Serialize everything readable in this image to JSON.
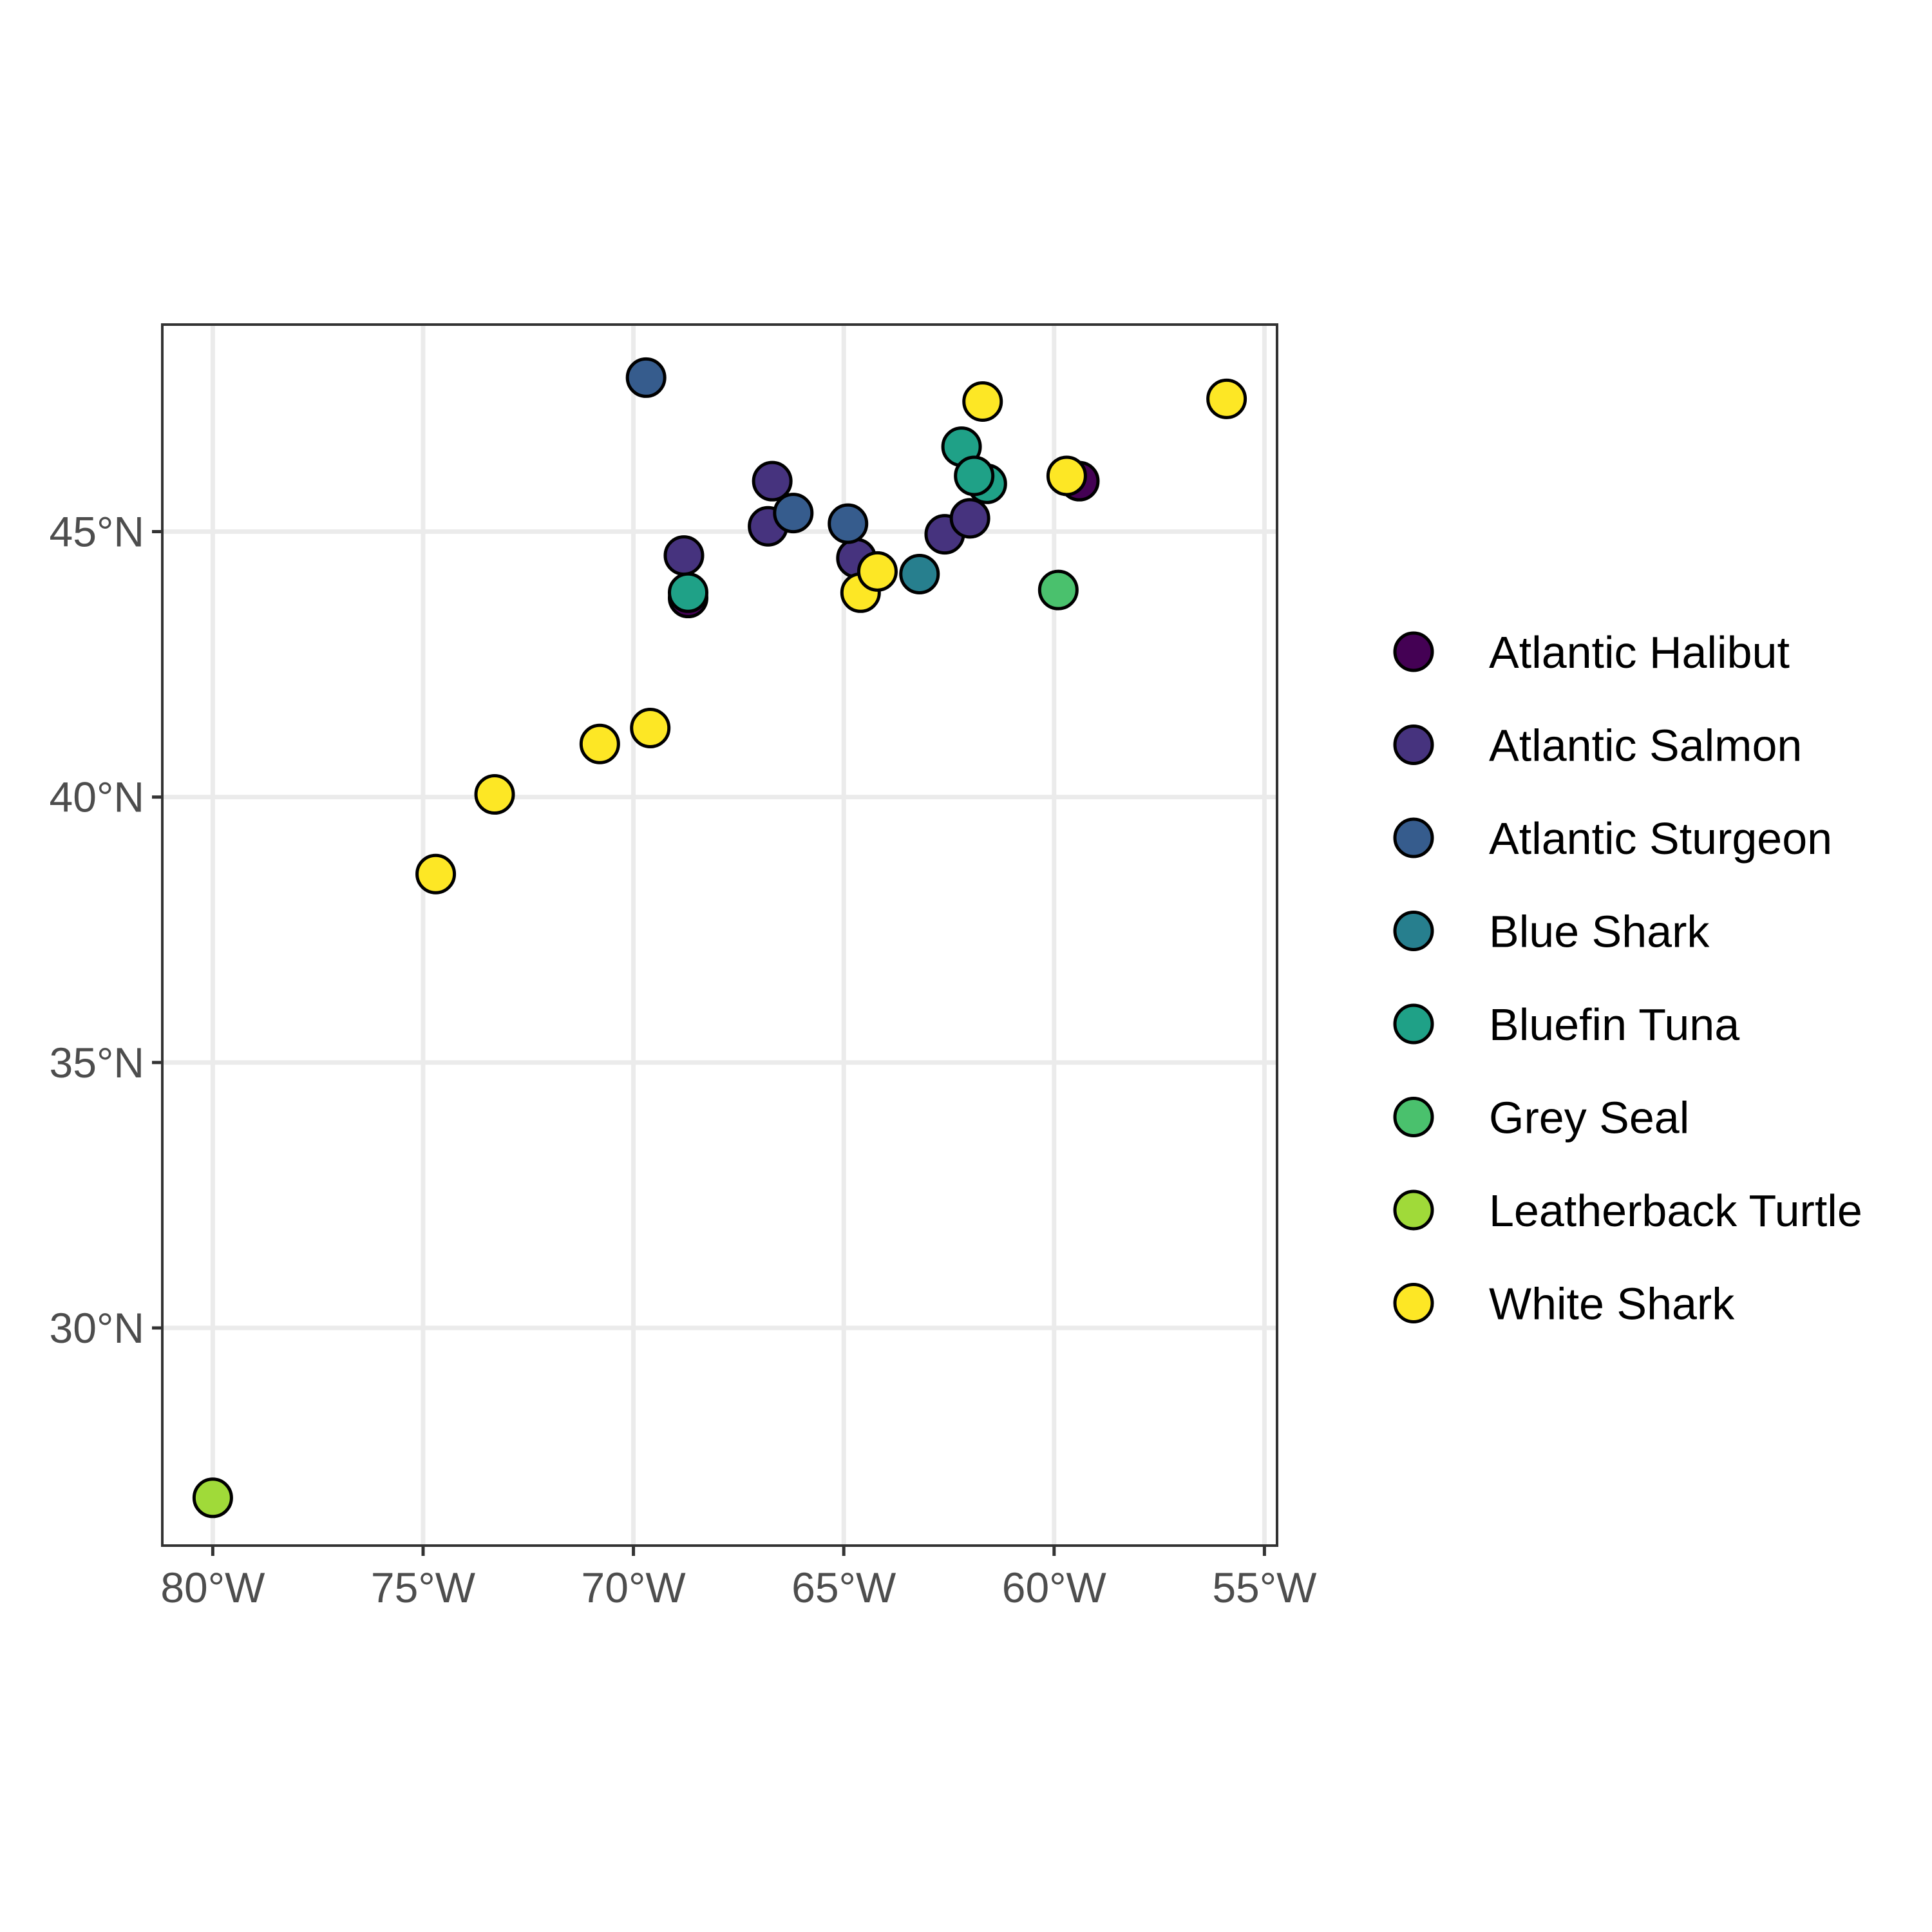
{
  "chart_data": {
    "type": "scatter",
    "title": "",
    "xlabel": "",
    "ylabel": "",
    "xlim": [
      -81.2,
      -54.7
    ],
    "ylim": [
      25.9,
      48.9
    ],
    "x_ticks": [
      {
        "value": -80,
        "label": "80°W"
      },
      {
        "value": -75,
        "label": "75°W"
      },
      {
        "value": -70,
        "label": "70°W"
      },
      {
        "value": -65,
        "label": "65°W"
      },
      {
        "value": -60,
        "label": "60°W"
      },
      {
        "value": -55,
        "label": "55°W"
      }
    ],
    "y_ticks": [
      {
        "value": 30,
        "label": "30°N"
      },
      {
        "value": 35,
        "label": "35°N"
      },
      {
        "value": 40,
        "label": "40°N"
      },
      {
        "value": 45,
        "label": "45°N"
      }
    ],
    "grid": true,
    "legend": {
      "position": "right"
    },
    "series": [
      {
        "name": "Atlantic Halibut",
        "color": "#440154",
        "points": [
          [
            -68.7,
            43.75
          ],
          [
            -59.4,
            45.95
          ]
        ]
      },
      {
        "name": "Atlantic Salmon",
        "color": "#46337E",
        "points": [
          [
            -68.8,
            44.55
          ],
          [
            -66.7,
            45.95
          ],
          [
            -66.8,
            45.1
          ],
          [
            -64.7,
            44.5
          ],
          [
            -62.6,
            44.95
          ],
          [
            -62.0,
            45.25
          ]
        ]
      },
      {
        "name": "Atlantic Sturgeon",
        "color": "#365C8D",
        "points": [
          [
            -69.7,
            47.9
          ],
          [
            -66.2,
            45.35
          ],
          [
            -64.9,
            45.15
          ]
        ]
      },
      {
        "name": "Blue Shark",
        "color": "#277F8E",
        "points": [
          [
            -63.2,
            44.2
          ]
        ]
      },
      {
        "name": "Bluefin Tuna",
        "color": "#1FA187",
        "points": [
          [
            -68.7,
            43.85
          ],
          [
            -62.2,
            46.6
          ],
          [
            -61.6,
            45.9
          ],
          [
            -61.9,
            46.05
          ]
        ]
      },
      {
        "name": "Grey Seal",
        "color": "#4AC16D",
        "points": [
          [
            -59.9,
            43.9
          ]
        ]
      },
      {
        "name": "Leatherback Turtle",
        "color": "#A0DA39",
        "points": [
          [
            -80.0,
            26.8
          ]
        ]
      },
      {
        "name": "White Shark",
        "color": "#FDE725",
        "points": [
          [
            -74.7,
            38.55
          ],
          [
            -73.3,
            40.05
          ],
          [
            -70.8,
            41.0
          ],
          [
            -69.6,
            41.3
          ],
          [
            -64.6,
            43.85
          ],
          [
            -64.2,
            44.25
          ],
          [
            -61.7,
            47.45
          ],
          [
            -59.7,
            46.05
          ],
          [
            -55.9,
            47.5
          ]
        ]
      }
    ]
  }
}
